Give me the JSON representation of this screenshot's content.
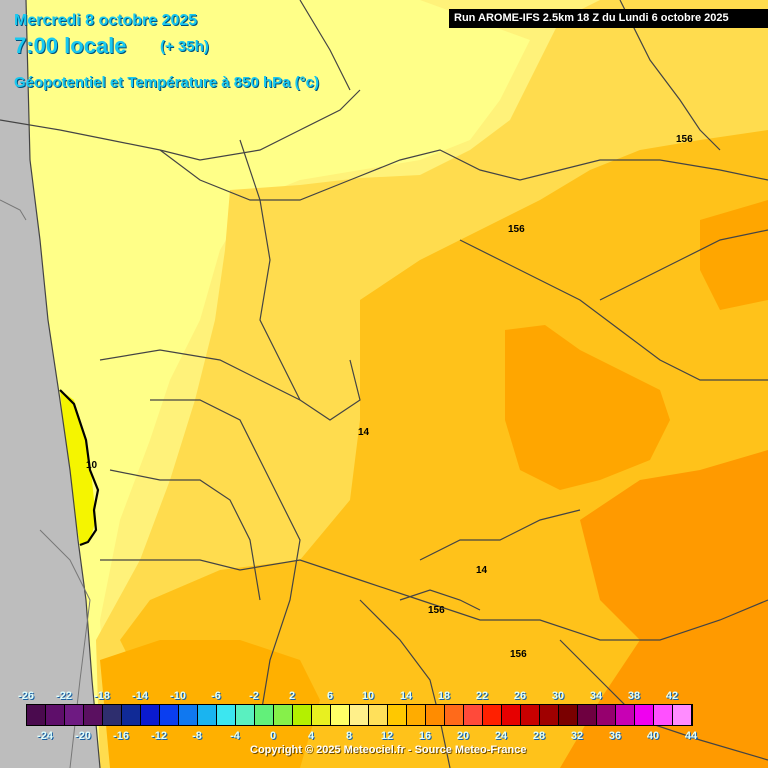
{
  "header": {
    "date": "Mercredi 8 octobre 2025",
    "time": "7:00 locale",
    "lead": "(+ 35h)",
    "parameter": "Géopotentiel et Température à 850 hPa (°c)",
    "run": "Run AROME-IFS 2.5km 18 Z du Lundi 6 octobre 2025"
  },
  "contour_labels": [
    {
      "id": "156-ne",
      "text": "156"
    },
    {
      "id": "156-center",
      "text": "156"
    },
    {
      "id": "14-mid",
      "text": "14"
    },
    {
      "id": "10-coast",
      "text": "10"
    },
    {
      "id": "14-south",
      "text": "14"
    },
    {
      "id": "156-south-a",
      "text": "156"
    },
    {
      "id": "156-south-b",
      "text": "156"
    }
  ],
  "legend": {
    "ticks_top": [
      "-26",
      "-22",
      "-18",
      "-14",
      "-10",
      "-6",
      "-2",
      "2",
      "6",
      "10",
      "14",
      "18",
      "22",
      "26",
      "30",
      "34",
      "38",
      "42"
    ],
    "ticks_bottom": [
      "-24",
      "-20",
      "-16",
      "-12",
      "-8",
      "-4",
      "0",
      "4",
      "8",
      "12",
      "16",
      "20",
      "24",
      "28",
      "32",
      "36",
      "40",
      "44"
    ],
    "colors": [
      "#4a0a4e",
      "#5e0e6a",
      "#6e1a82",
      "#5a1060",
      "#2e2e6e",
      "#102a96",
      "#0a1ad0",
      "#0a3ef0",
      "#1078f0",
      "#1ab4f0",
      "#3ce6f0",
      "#5af0c0",
      "#62f07a",
      "#86f04a",
      "#b4f000",
      "#e8f020",
      "#ffff66",
      "#fff08a",
      "#ffe05a",
      "#ffc800",
      "#ffac00",
      "#ff8c00",
      "#ff6a1a",
      "#ff4a3a",
      "#ff2000",
      "#e60000",
      "#c80000",
      "#a00000",
      "#7a0000",
      "#6e0040",
      "#96006e",
      "#c800b4",
      "#f000f0",
      "#ff50ff",
      "#ff8cff"
    ]
  },
  "copyright": "Copyright © 2025 Meteociel.fr - Source Meteo-France",
  "colors": {
    "land_grey": "#bdbdbd",
    "t8_10": "#ffff88",
    "t10_12": "#fff07a",
    "t12_14": "#ffdc4e",
    "t14_16": "#ffc21a",
    "t16_18": "#ffa400",
    "t18_20": "#ff9000"
  }
}
